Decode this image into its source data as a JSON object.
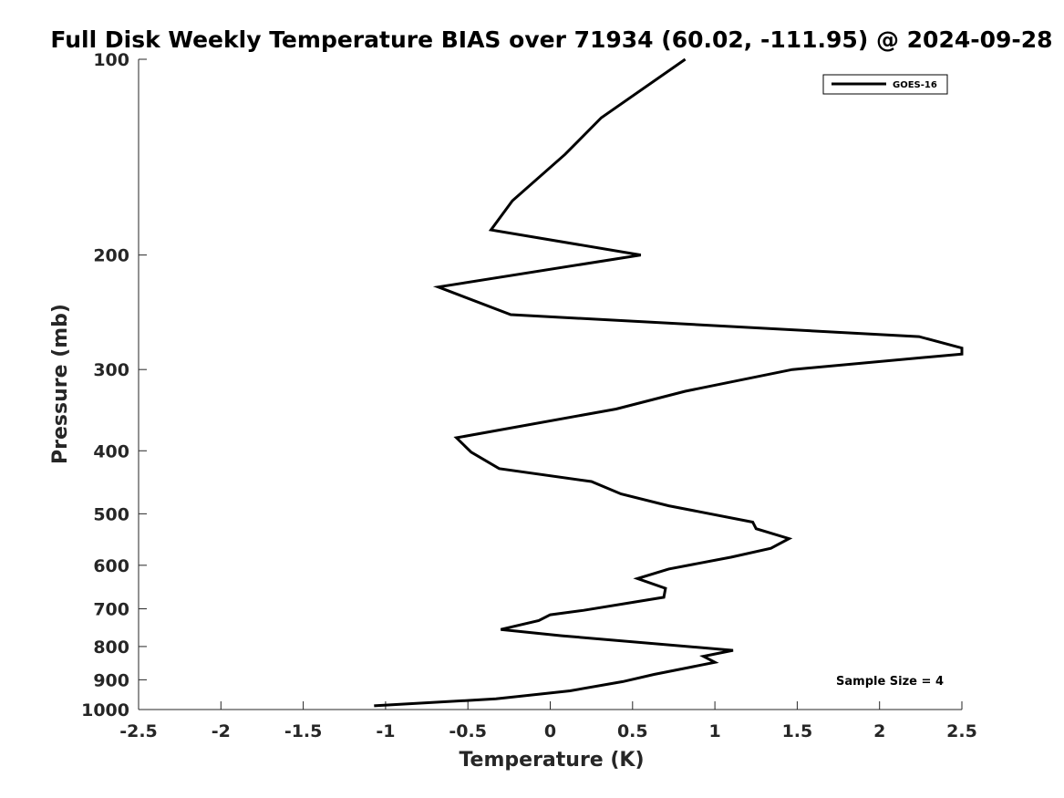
{
  "chart_data": {
    "type": "line",
    "title": "Full Disk Weekly Temperature BIAS over 71934 (60.02, -111.95) @ 2024-09-28",
    "xlabel": "Temperature (K)",
    "ylabel": "Pressure (mb)",
    "xlim": [
      -2.5,
      2.5
    ],
    "ylim": [
      100,
      1000
    ],
    "y_scale": "log",
    "y_reversed": true,
    "x_ticks": [
      "-2.5",
      "-2",
      "-1.5",
      "-1",
      "-0.5",
      "0",
      "0.5",
      "1",
      "1.5",
      "2",
      "2.5"
    ],
    "y_ticks": [
      "100",
      "200",
      "300",
      "400",
      "500",
      "600",
      "700",
      "800",
      "900",
      "1000"
    ],
    "grid": false,
    "legend_position": "top-right",
    "series": [
      {
        "name": "GOES-16",
        "color": "#000000",
        "x": [
          0.82,
          0.31,
          0.09,
          -0.23,
          -0.36,
          0.55,
          -0.68,
          -0.24,
          2.24,
          2.5,
          2.5,
          1.47,
          0.82,
          0.4,
          -0.57,
          -0.48,
          -0.31,
          0.25,
          0.43,
          0.72,
          1.23,
          1.25,
          1.45,
          1.34,
          1.1,
          0.72,
          0.53,
          0.7,
          0.69,
          0.2,
          0.0,
          -0.07,
          -0.3,
          0.07,
          1.11,
          0.93,
          1.0,
          0.84,
          0.63,
          0.44,
          0.12,
          -0.33,
          -1.07
        ],
        "y": [
          100,
          123,
          140,
          165,
          183,
          200,
          224,
          247,
          267,
          278,
          284,
          300,
          324,
          345,
          382,
          402,
          426,
          446,
          466,
          486,
          515,
          527,
          546,
          565,
          583,
          608,
          629,
          651,
          672,
          704,
          715,
          730,
          753,
          770,
          811,
          828,
          846,
          862,
          883,
          906,
          936,
          963,
          987
        ]
      }
    ],
    "annotations": [
      "Sample Size = 4"
    ]
  }
}
